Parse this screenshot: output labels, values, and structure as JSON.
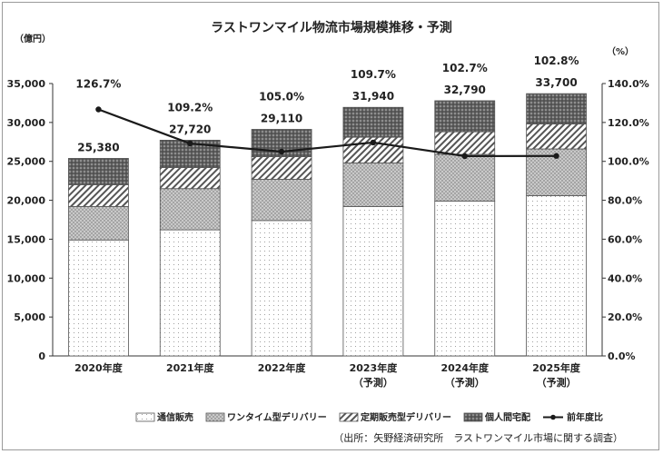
{
  "chart_data": {
    "type": "bar",
    "stacked": true,
    "title": "ラストワンマイル物流市場規模推移・予測",
    "y_unit_label": "（億円）",
    "y2_unit_label": "（%）",
    "ylim": [
      0,
      35000
    ],
    "y_ticks": [
      "0",
      "5,000",
      "10,000",
      "15,000",
      "20,000",
      "25,000",
      "30,000",
      "35,000"
    ],
    "y2lim": [
      0,
      140
    ],
    "y2_ticks": [
      "0.0%",
      "20.0%",
      "40.0%",
      "60.0%",
      "80.0%",
      "100.0%",
      "120.0%",
      "140.0%"
    ],
    "categories": [
      {
        "label": "2020年度",
        "sub": ""
      },
      {
        "label": "2021年度",
        "sub": ""
      },
      {
        "label": "2022年度",
        "sub": ""
      },
      {
        "label": "2023年度",
        "sub": "（予測）"
      },
      {
        "label": "2024年度",
        "sub": "（予測）"
      },
      {
        "label": "2025年度",
        "sub": "（予測）"
      }
    ],
    "series": [
      {
        "name": "通信販売",
        "pattern": "dots-light",
        "values": [
          14900,
          16200,
          17400,
          19200,
          19900,
          20600
        ]
      },
      {
        "name": "ワンタイム型デリバリー",
        "pattern": "dots-gray",
        "values": [
          4300,
          5300,
          5300,
          5600,
          6000,
          6000
        ]
      },
      {
        "name": "定期販売型デリバリー",
        "pattern": "diagonal",
        "values": [
          2800,
          2700,
          2900,
          3300,
          2900,
          3200
        ]
      },
      {
        "name": "個人間宅配",
        "pattern": "dots-dark",
        "values": [
          3380,
          3520,
          3510,
          3840,
          3990,
          3900
        ]
      }
    ],
    "totals": [
      "25,380",
      "27,720",
      "29,110",
      "31,940",
      "32,790",
      "33,700"
    ],
    "line_series": {
      "name": "前年度比",
      "values": [
        126.7,
        109.2,
        105.0,
        109.7,
        102.7,
        102.8
      ],
      "labels": [
        "126.7%",
        "109.2%",
        "105.0%",
        "109.7%",
        "102.7%",
        "102.8%"
      ]
    },
    "legend_position": "bottom",
    "grid": false,
    "source_note": "（出所：矢野経済研究所　ラストワンマイル市場に関する調査）"
  }
}
